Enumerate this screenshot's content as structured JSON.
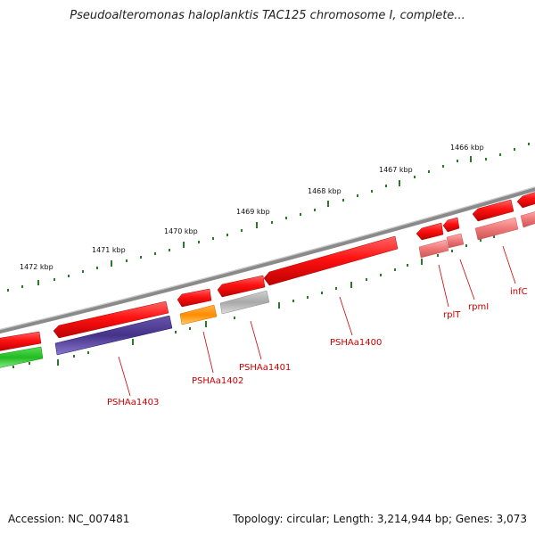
{
  "header": {
    "title": "Pseudoalteromonas haloplanktis TAC125 chromosome I, complete..."
  },
  "footer": {
    "accession": "Accession: NC_007481",
    "summary": "Topology: circular; Length: 3,214,944 bp; Genes: 3,073"
  },
  "ruler": {
    "labels": [
      "1472 kbp",
      "1471 kbp",
      "1470 kbp",
      "1469 kbp",
      "1468 kbp",
      "1467 kbp",
      "1466 kbp"
    ]
  },
  "colors": {
    "backbone": "#7a7a7a",
    "gene_red": "#ee1111",
    "gene_pink": "#ee7777",
    "gene_navy": "#443388",
    "gene_orange": "#ff8c00",
    "gene_gray": "#aaaaaa",
    "gene_green": "#22bb22",
    "ruler_tick": "#2a7a2a",
    "label_text": "#cc0000"
  },
  "gene_labels": [
    "PSHAa1403",
    "PSHAa1402",
    "PSHAa1401",
    "PSHAa1400",
    "rplT",
    "rpmI",
    "infC"
  ]
}
